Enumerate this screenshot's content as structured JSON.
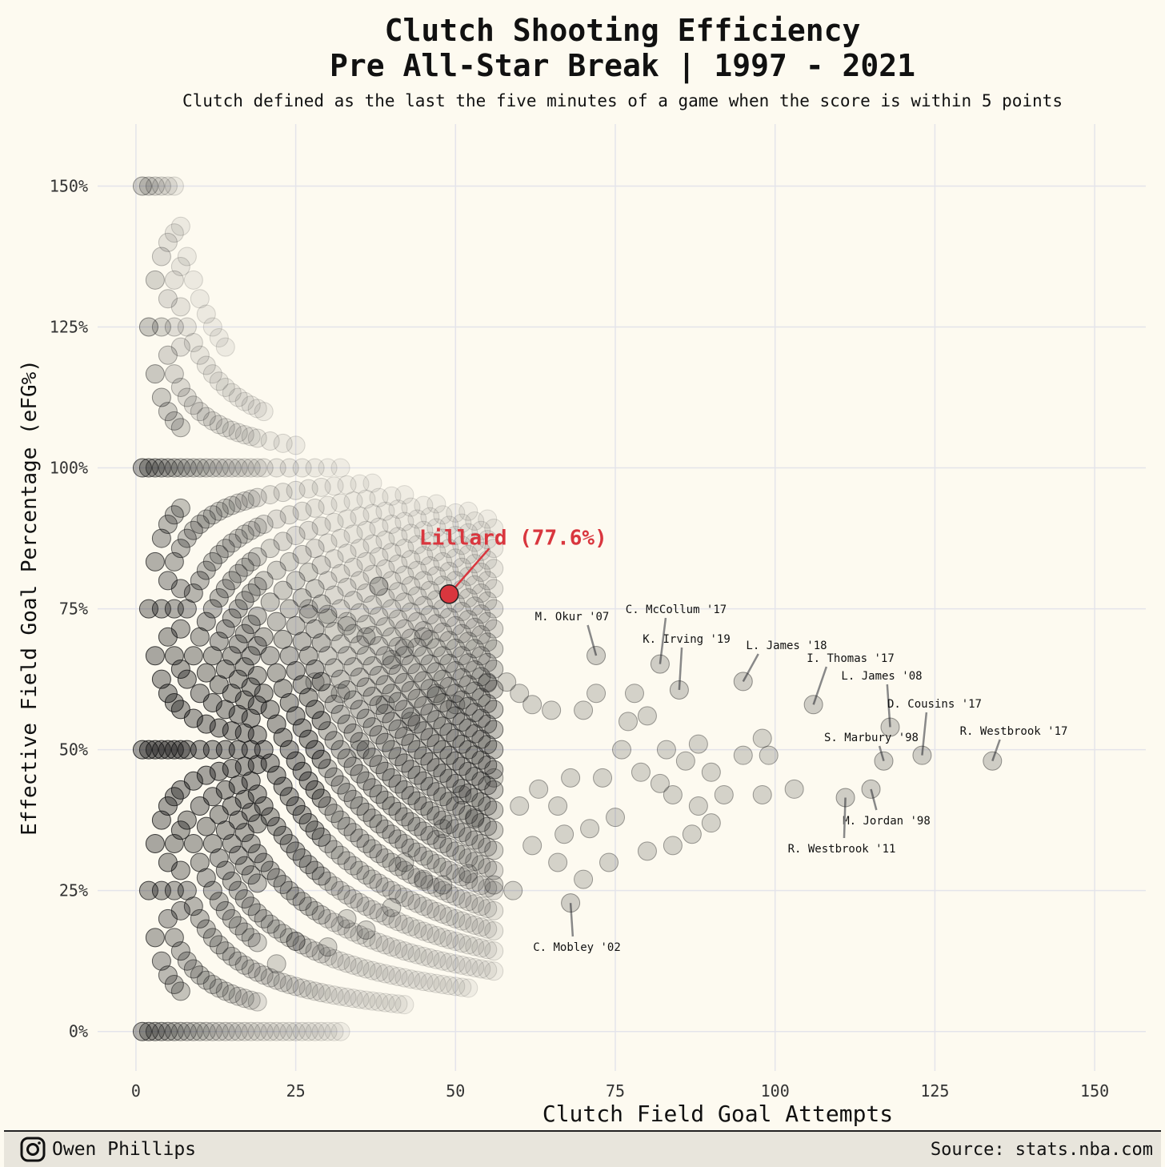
{
  "title_line1": "Clutch Shooting Efficiency",
  "title_line2": "Pre All-Star Break | 1997 - 2021",
  "subtitle": "Clutch defined as the last the five minutes of a game when the score is within 5 points",
  "footer": {
    "author": "Owen Phillips",
    "source": "Source: stats.nba.com",
    "author_icon": "instagram-icon"
  },
  "colors": {
    "background": "#fdfaf0",
    "point": "#1a1a1a",
    "highlight": "#d9363e",
    "grid": "#e4e4ea"
  },
  "chart_data": {
    "type": "scatter",
    "xlabel": "Clutch Field Goal Attempts",
    "ylabel": "Effective Field Goal Percentage (eFG%)",
    "xlim": [
      -6,
      158
    ],
    "ylim": [
      -0.07,
      1.61
    ],
    "xticks": [
      0,
      25,
      50,
      75,
      100,
      125,
      150
    ],
    "xtick_labels": [
      "0",
      "25",
      "50",
      "75",
      "100",
      "125",
      "150"
    ],
    "yticks": [
      0,
      0.25,
      0.5,
      0.75,
      1.0,
      1.5
    ],
    "ytick_labels": [
      "0%",
      "25%",
      "50%",
      "75%",
      "100%",
      "150%"
    ],
    "ygrid_extra": [
      1.25
    ],
    "ygrid_extra_labels": [
      "125%"
    ],
    "highlight": {
      "name": "Lillard (77.6%)",
      "x": 49,
      "y": 0.776
    },
    "labeled_points": [
      {
        "label": "M. Okur '07",
        "x": 72,
        "y": 0.667
      },
      {
        "label": "C. McCollum '17",
        "x": 82,
        "y": 0.652
      },
      {
        "label": "K. Irving '19",
        "x": 85,
        "y": 0.606
      },
      {
        "label": "L. James '18",
        "x": 95,
        "y": 0.621
      },
      {
        "label": "I. Thomas '17",
        "x": 106,
        "y": 0.58
      },
      {
        "label": "L. James '08",
        "x": 118,
        "y": 0.54
      },
      {
        "label": "D. Cousins '17",
        "x": 123,
        "y": 0.49
      },
      {
        "label": "S. Marbury '98",
        "x": 117,
        "y": 0.48
      },
      {
        "label": "R. Westbrook '17",
        "x": 134,
        "y": 0.48
      },
      {
        "label": "M. Jordan '98",
        "x": 115,
        "y": 0.43
      },
      {
        "label": "R. Westbrook '11",
        "x": 111,
        "y": 0.415
      },
      {
        "label": "C. Mobley '02",
        "x": 68,
        "y": 0.228
      }
    ],
    "extra_points": [
      [
        38,
        0.79
      ],
      [
        58,
        0.62
      ],
      [
        60,
        0.6
      ],
      [
        62,
        0.58
      ],
      [
        65,
        0.57
      ],
      [
        70,
        0.57
      ],
      [
        72,
        0.6
      ],
      [
        77,
        0.55
      ],
      [
        78,
        0.6
      ],
      [
        80,
        0.56
      ],
      [
        83,
        0.5
      ],
      [
        86,
        0.48
      ],
      [
        88,
        0.51
      ],
      [
        90,
        0.46
      ],
      [
        92,
        0.42
      ],
      [
        95,
        0.49
      ],
      [
        98,
        0.52
      ],
      [
        99,
        0.49
      ],
      [
        98,
        0.42
      ],
      [
        103,
        0.43
      ],
      [
        88,
        0.4
      ],
      [
        90,
        0.37
      ],
      [
        87,
        0.35
      ],
      [
        84,
        0.33
      ],
      [
        80,
        0.32
      ],
      [
        74,
        0.3
      ],
      [
        70,
        0.27
      ],
      [
        66,
        0.3
      ],
      [
        62,
        0.33
      ],
      [
        59,
        0.25
      ],
      [
        56,
        0.26
      ],
      [
        52,
        0.28
      ],
      [
        48,
        0.26
      ],
      [
        45,
        0.27
      ],
      [
        42,
        0.3
      ],
      [
        40,
        0.22
      ],
      [
        36,
        0.18
      ],
      [
        33,
        0.2
      ],
      [
        30,
        0.15
      ],
      [
        25,
        0.16
      ],
      [
        22,
        0.12
      ],
      [
        45,
        0.7
      ],
      [
        42,
        0.68
      ],
      [
        40,
        0.66
      ],
      [
        36,
        0.7
      ],
      [
        33,
        0.72
      ],
      [
        30,
        0.74
      ],
      [
        27,
        0.75
      ],
      [
        32,
        0.6
      ],
      [
        28,
        0.62
      ],
      [
        55,
        0.62
      ],
      [
        50,
        0.58
      ],
      [
        47,
        0.6
      ],
      [
        43,
        0.55
      ],
      [
        39,
        0.58
      ],
      [
        35,
        0.5
      ],
      [
        68,
        0.45
      ],
      [
        66,
        0.4
      ],
      [
        63,
        0.43
      ],
      [
        60,
        0.4
      ],
      [
        56,
        0.45
      ],
      [
        53,
        0.38
      ],
      [
        51,
        0.42
      ],
      [
        48,
        0.36
      ],
      [
        76,
        0.5
      ],
      [
        79,
        0.46
      ],
      [
        82,
        0.44
      ],
      [
        84,
        0.42
      ],
      [
        73,
        0.45
      ],
      [
        75,
        0.38
      ],
      [
        71,
        0.36
      ],
      [
        67,
        0.35
      ]
    ]
  }
}
